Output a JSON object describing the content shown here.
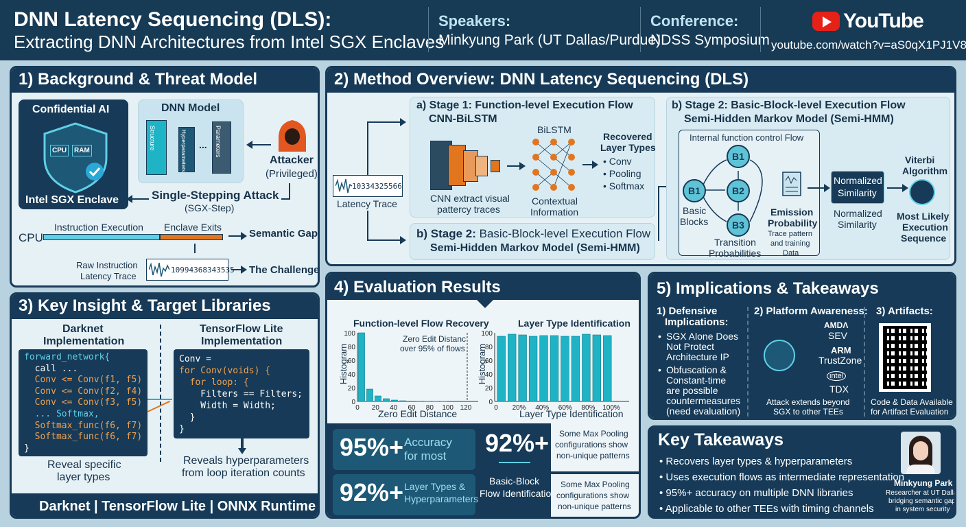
{
  "header": {
    "title_line1": "DNN Latency Sequencing (DLS):",
    "title_line2": "Extracting DNN Architectures from Intel SGX Enclaves",
    "speakers_label": "Speakers:",
    "speakers_value": "Minkyung Park (UT Dallas/Purdue)",
    "conference_label": "Conference:",
    "conference_value": "NDSS Symposium",
    "youtube_logo_text": "YouTube",
    "youtube_url": "youtube.com/watch?v=aS0qX1PJ1V8"
  },
  "p1": {
    "title": "1) Background & Threat Model",
    "confidential_ai": "Confidential AI",
    "cpu": "CPU",
    "ram": "RAM",
    "enclave": "Intel SGX Enclave",
    "dnn_model": "DNN Model",
    "layer1": "Structure",
    "layer2": "Hyperparameters",
    "layer3": "Parameters",
    "dots": "...",
    "attacker": "Attacker",
    "attacker_sub": "(Privileged)",
    "attack": "Single-Stepping Attack",
    "attack_sub": "(SGX-Step)",
    "cpu_label": "CPU",
    "instr_exec": "Instruction Execution",
    "enclave_exits": "Enclave Exits",
    "semantic_gap": "Semantic Gap",
    "raw_trace": "Raw Instruction",
    "raw_trace2": "Latency Trace",
    "trace_digits": "10994368343535",
    "challenge": "The Challenge"
  },
  "p2": {
    "title": "2) Method Overview: DNN Latency Sequencing (DLS)",
    "latency_trace": "Latency Trace",
    "trace_digits": "10334325566",
    "s1_title": "a) Stage 1: Function-level Execution Flow",
    "s1_model": "CNN-BiLSTM",
    "cnn_caption1": "CNN extract visual",
    "cnn_caption2": "pattercy traces",
    "bilstm": "BiLSTM",
    "contextual1": "Contextual",
    "contextual2": "Information",
    "recovered1": "Recovered",
    "recovered2": "Layer Types",
    "types": [
      "• Conv",
      "• Pooling",
      "• Softmax"
    ],
    "s2_title_left_a": "b) Stage 2:",
    "s2_title_left_b": "Basic-Block-level Execution Flow",
    "s2_model_left": "Semi-Hidden Markov Model (Semi-HMM)",
    "s2_title": "b) Stage 2: Basic-Block-level Execution Flow",
    "s2_model": "Semi-Hidden Markov Model (Semi-HMM)",
    "internal_flow": "Internal function control Flow",
    "nodes": [
      "B1",
      "B1",
      "B2",
      "B3"
    ],
    "basic_blocks1": "Basic",
    "basic_blocks2": "Blocks",
    "transition1": "Transition",
    "transition2": "Probabilities",
    "emission1": "Emission",
    "emission2": "Probability",
    "emission3": "Trace pattern",
    "emission4": "and training",
    "emission5": "Data",
    "norm_box1": "Normalized",
    "norm_box2": "Similarity",
    "norm_label1": "Normalized",
    "norm_label2": "Similarity",
    "viterbi1": "Viterbi",
    "viterbi2": "Algorithm",
    "most1": "Most Likely",
    "most2": "Execution",
    "most3": "Sequence"
  },
  "p3": {
    "title": "3) Key Insight & Target Libraries",
    "darknet1": "Darknet",
    "darknet2": "Implementation",
    "tfl1": "TensorFlow Lite",
    "tfl2": "Implementation",
    "darknet_code": [
      "forward_network{",
      "  call ...",
      "  Conv <= Conv(f1, f5)",
      "  Conv <= Conv(f2, f4)",
      "  Conv <= Conv(f3, f5)",
      "  ... Softmax,",
      "  Softmax_func(f6, f7)",
      "  Softmax_func(f6, f7)",
      "}"
    ],
    "tfl_code": [
      "Conv =",
      "for Conv(voids) {",
      "  for loop: {",
      "    Filters == Filters;",
      "    Width = Width;",
      "  }",
      "}"
    ],
    "reveal1": "Reveal specific",
    "reveal2": "layer types",
    "reveals1": "Reveals hyperparameters",
    "reveals2": "from loop iteration counts",
    "libraries": "Darknet | TensorFlow Lite | ONNX Runtime"
  },
  "p4": {
    "title": "4) Evaluation Results",
    "chart1_title": "Function-level Flow Recovery",
    "chart1_note1": "Zero Edit Distanc",
    "chart1_note2": "over 95% of flows",
    "chart2_title": "Layer Type Identification",
    "stat1_big": "95%+",
    "stat1_small1": "Accuracy",
    "stat1_small2": "for most",
    "stat2_big": "92%+",
    "stat2_cap1": "Basic-Block",
    "stat2_cap2": "Flow Identification",
    "stat3_big": "92%+",
    "stat3_small1": "Layer Types &",
    "stat3_small2": "Hyperparameters",
    "note_a1": "Some Max Pooling",
    "note_a2": "configurations show",
    "note_a3": "non-unique patterns",
    "note_b1": "Some Max Pooling",
    "note_b2": "configurations show",
    "note_b3": "non-unique patterns"
  },
  "chart_data": [
    {
      "type": "bar",
      "title": "Function-level Flow Recovery",
      "xlabel": "Zero Edit Distance",
      "ylabel": "Histogram",
      "x": [
        0,
        10,
        20,
        30,
        40,
        50,
        60,
        70,
        80,
        90,
        100
      ],
      "values": [
        100,
        18,
        8,
        4,
        2,
        1,
        0.5,
        0.3,
        0.2,
        0.2,
        0.2
      ],
      "xticks": [
        "0",
        "20",
        "40",
        "60",
        "80",
        "100",
        "120"
      ],
      "yticks": [
        "0",
        "20",
        "40",
        "60",
        "80",
        "100"
      ],
      "xlim": [
        0,
        120
      ],
      "ylim": [
        0,
        100
      ]
    },
    {
      "type": "bar",
      "title": "Layer Type Identification",
      "xlabel": "Layer Type Identification",
      "ylabel": "Histogram",
      "values": [
        95,
        98,
        97,
        95,
        96,
        96,
        95,
        95,
        98,
        97,
        96
      ],
      "xticks": [
        "0",
        "20%",
        "40%",
        "60%",
        "80%",
        "100%"
      ],
      "yticks": [
        "0",
        "20",
        "40",
        "60",
        "80",
        "100"
      ],
      "ylim": [
        0,
        100
      ]
    }
  ],
  "p5": {
    "title": "5) Implications & Takeaways",
    "def1": "1) Defensive",
    "def2": "Implications:",
    "def_items": [
      [
        "SGX Alone Does",
        "Not Protect",
        "Architecture IP"
      ],
      [
        "Obfuscation &",
        "Constant-time",
        "are possible",
        "countermeasures",
        "(need evaluation)"
      ]
    ],
    "platform": "2) Platform Awareness:",
    "amd": "AMDΛ",
    "sev": "SEV",
    "arm": "ARM",
    "trustzone": "TrustZone",
    "intel": "intel",
    "tdx": "TDX",
    "extends1": "Attack extends beyond",
    "extends2": "SGX to other TEEs",
    "artifacts": "3) Artifacts:",
    "avail1": "Code & Data Available",
    "avail2": "for Artifact Evaluation"
  },
  "p6": {
    "title": "Key Takeaways",
    "items": [
      "Recovers layer types & hyperparameters",
      "Uses execution flows as intermediate representation",
      "95%+ accuracy on multiple DNN libraries",
      "Applicable to other TEEs with timing channels"
    ],
    "name": "Minkyung Park",
    "bio1": "Researcher at UT Dallas,",
    "bio2": "bridging semantic gaps",
    "bio3": "in system security"
  }
}
